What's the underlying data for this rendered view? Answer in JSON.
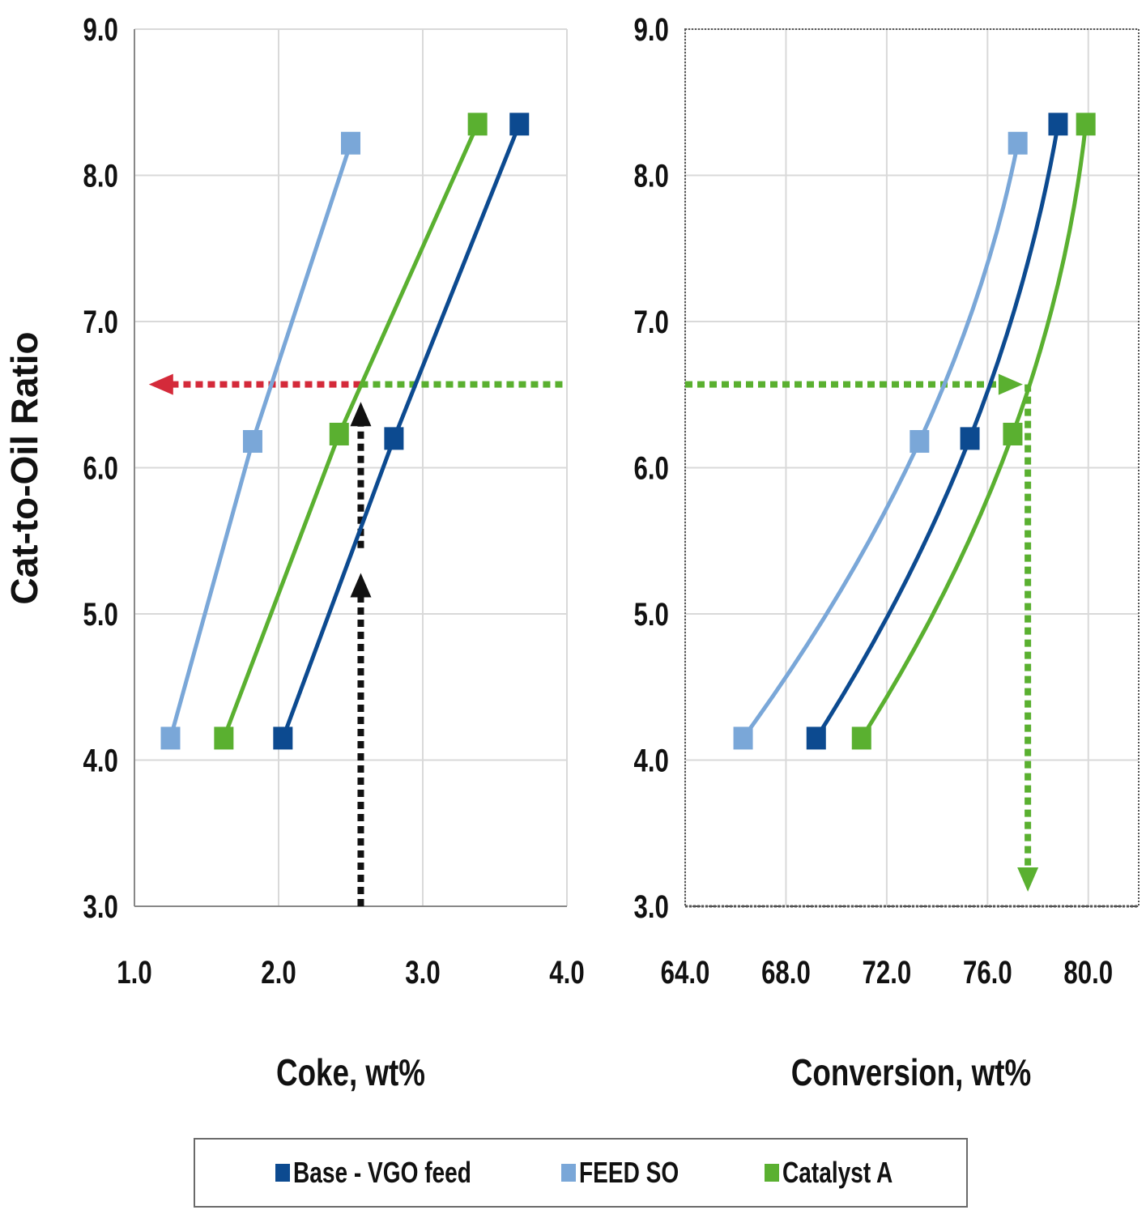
{
  "chart_data": [
    {
      "type": "line",
      "xlabel": "Coke, wt%",
      "ylabel": "Cat-to-Oil Ratio",
      "xlim": [
        1.0,
        4.0
      ],
      "ylim": [
        3.0,
        9.0
      ],
      "xticks": [
        "1.0",
        "2.0",
        "3.0",
        "4.0"
      ],
      "yticks": [
        "3.0",
        "4.0",
        "5.0",
        "6.0",
        "7.0",
        "8.0",
        "9.0"
      ],
      "grid": true,
      "series": [
        {
          "name": "FEED SO",
          "color": "#7aa7d8",
          "x": [
            1.25,
            1.82,
            2.5
          ],
          "y": [
            4.15,
            6.18,
            8.22
          ]
        },
        {
          "name": "Catalyst A",
          "color": "#5ab030",
          "x": [
            1.62,
            2.42,
            3.38
          ],
          "y": [
            4.15,
            6.23,
            8.35
          ]
        },
        {
          "name": "Base - VGO feed",
          "color": "#0c4a90",
          "x": [
            2.03,
            2.8,
            3.67
          ],
          "y": [
            4.15,
            6.2,
            8.35
          ]
        }
      ],
      "annotations": [
        {
          "kind": "arrow",
          "style": "dotted",
          "color": "#d42a3a",
          "from": [
            2.57,
            6.57
          ],
          "to": [
            1.1,
            6.57
          ]
        },
        {
          "kind": "arrow",
          "style": "dotted",
          "color": "#111111",
          "from": [
            2.57,
            3.0
          ],
          "to": [
            2.57,
            5.28
          ]
        },
        {
          "kind": "arrow",
          "style": "dotted",
          "color": "#111111",
          "from": [
            2.57,
            5.45
          ],
          "to": [
            2.57,
            6.45
          ]
        },
        {
          "kind": "line",
          "style": "dotted",
          "color": "#5ab030",
          "from": [
            2.57,
            6.57
          ],
          "to": [
            4.0,
            6.57
          ]
        }
      ]
    },
    {
      "type": "line",
      "xlabel": "Conversion, wt%",
      "xlim": [
        64.0,
        82.0
      ],
      "ylim": [
        3.0,
        9.0
      ],
      "xticks": [
        "64.0",
        "68.0",
        "72.0",
        "76.0",
        "80.0"
      ],
      "yticks": [
        "3.0",
        "4.0",
        "5.0",
        "6.0",
        "7.0",
        "8.0",
        "9.0"
      ],
      "grid": true,
      "series": [
        {
          "name": "FEED SO",
          "color": "#7aa7d8",
          "x": [
            66.3,
            73.3,
            77.2
          ],
          "y": [
            4.15,
            6.18,
            8.22
          ]
        },
        {
          "name": "Base - VGO feed",
          "color": "#0c4a90",
          "x": [
            69.2,
            75.3,
            78.8
          ],
          "y": [
            4.15,
            6.2,
            8.35
          ]
        },
        {
          "name": "Catalyst A",
          "color": "#5ab030",
          "x": [
            71.0,
            77.0,
            79.9
          ],
          "y": [
            4.15,
            6.23,
            8.35
          ]
        }
      ],
      "annotations": [
        {
          "kind": "arrow",
          "style": "dotted",
          "color": "#5ab030",
          "from": [
            64.0,
            6.57
          ],
          "to": [
            77.4,
            6.57
          ]
        },
        {
          "kind": "arrow",
          "style": "dotted",
          "color": "#5ab030",
          "from": [
            77.6,
            6.57
          ],
          "to": [
            77.6,
            3.1
          ]
        }
      ]
    }
  ],
  "legend": {
    "placement": "bottom",
    "items": [
      {
        "label": "Base - VGO feed",
        "color": "#0c4a90"
      },
      {
        "label": "FEED SO",
        "color": "#7aa7d8"
      },
      {
        "label": "Catalyst A",
        "color": "#5ab030"
      }
    ]
  }
}
